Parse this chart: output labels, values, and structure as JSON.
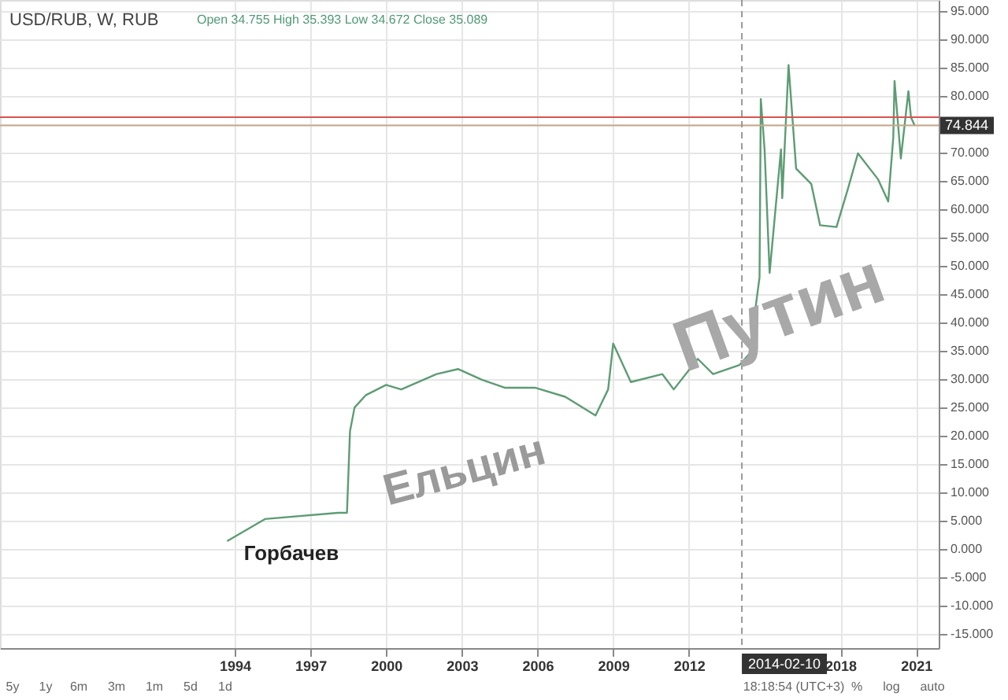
{
  "chart_data": {
    "type": "line",
    "title": "USD/RUB, W, RUB",
    "x": [
      1993.7,
      1995.2,
      1998.1,
      1998.45,
      1998.57,
      1998.75,
      1999.2,
      2000.0,
      2000.6,
      2002.0,
      2002.85,
      2003.8,
      2004.7,
      2005.9,
      2007.1,
      2008.3,
      2008.8,
      2009.0,
      2009.7,
      2010.95,
      2011.4,
      2012.35,
      2012.96,
      2014.0,
      2014.4,
      2014.8,
      2014.85,
      2015.0,
      2015.2,
      2015.65,
      2015.7,
      2015.95,
      2016.25,
      2016.85,
      2017.2,
      2017.85,
      2018.3,
      2018.7,
      2019.5,
      2019.9,
      2020.1,
      2020.15,
      2020.4,
      2020.7,
      2020.8,
      2020.95
    ],
    "series": [
      {
        "color": "#5d9c74",
        "values": [
          1.4,
          5.3,
          6.4,
          6.4,
          20.8,
          25,
          27.2,
          29,
          28.2,
          30.9,
          31.8,
          29.9,
          28.5,
          28.5,
          26.9,
          23.6,
          28.2,
          36.3,
          29.5,
          30.9,
          28.2,
          33.6,
          30.9,
          32.5,
          34.5,
          48,
          79.5,
          70.6,
          48.8,
          70.6,
          62,
          85.5,
          67.2,
          64.5,
          57.2,
          56.9,
          63.6,
          69.9,
          65.3,
          61.4,
          72.7,
          82.7,
          69,
          80.9,
          76.3,
          74.8
        ]
      }
    ],
    "xlim": [
      1984.7,
      2021.9
    ],
    "xticks": [
      1994,
      1997,
      2000,
      2003,
      2006,
      2009,
      2012,
      2018,
      2021
    ],
    "ylim": [
      -17.5,
      97
    ],
    "yticks": [
      {
        "value": -15,
        "label": "-15.000"
      },
      {
        "value": -10,
        "label": "-10.000"
      },
      {
        "value": -5,
        "label": "-5.000"
      },
      {
        "value": 0,
        "label": "0.000"
      },
      {
        "value": 5,
        "label": "5.000"
      },
      {
        "value": 10,
        "label": "10.000"
      },
      {
        "value": 15,
        "label": "15.000"
      },
      {
        "value": 20,
        "label": "20.000"
      },
      {
        "value": 25,
        "label": "25.000"
      },
      {
        "value": 30,
        "label": "30.000"
      },
      {
        "value": 35,
        "label": "35.000"
      },
      {
        "value": 40,
        "label": "40.000"
      },
      {
        "value": 45,
        "label": "45.000"
      },
      {
        "value": 50,
        "label": "50.000"
      },
      {
        "value": 55,
        "label": "55.000"
      },
      {
        "value": 60,
        "label": "60.000"
      },
      {
        "value": 65,
        "label": "65.000"
      },
      {
        "value": 70,
        "label": "70.000"
      },
      {
        "value": 75,
        "label": null
      },
      {
        "value": 80,
        "label": "80.000"
      },
      {
        "value": 85,
        "label": "85.000"
      },
      {
        "value": 90,
        "label": "90.000"
      },
      {
        "value": 95,
        "label": "95.000"
      }
    ],
    "grid": true,
    "ref_lines": [
      {
        "axis": "y",
        "value": 76.3,
        "label": null,
        "color": "#d9534f"
      },
      {
        "axis": "y",
        "value": 74.844,
        "label": "74.844",
        "color": "#c8a888"
      },
      {
        "axis": "x",
        "value": 2014.1,
        "label": "2014-02-10",
        "color": "#999999",
        "line_style": "dashed"
      }
    ],
    "annotations": [
      "Open 34.755 High 35.393 Low 34.672 Close 35.089",
      "5y",
      "1y",
      "6m",
      "3m",
      "1m",
      "5d",
      "1d",
      "18:18:54 (UTC+3)",
      "%",
      "log",
      "auto",
      "Горбачев",
      "Ельцин",
      "Путин"
    ]
  }
}
